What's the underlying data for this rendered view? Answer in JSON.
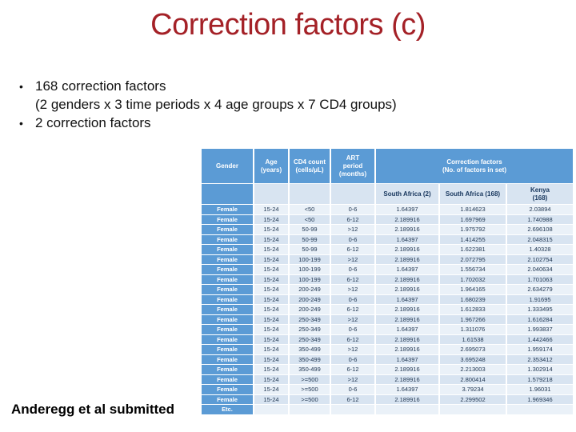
{
  "slide": {
    "title": "Correction factors (c)",
    "bullets": [
      {
        "marker": "•",
        "lines": [
          "168 correction factors",
          "(2 genders x 3 time periods x 4 age groups x 7 CD4 groups)"
        ]
      },
      {
        "marker": "•",
        "lines": [
          "2 correction factors"
        ]
      }
    ],
    "footnote": "Anderegg et al submitted"
  },
  "table": {
    "header": {
      "gender": "Gender",
      "age": "Age\n(years)",
      "cd4": "CD4 count\n(cells/μL)",
      "art": "ART\nperiod\n(months)",
      "correction": "Correction factors\n(No. of factors in set)"
    },
    "subheader": {
      "south_africa_2": "South Africa (2)",
      "south_africa_168": "South Africa (168)",
      "kenya_168": "Kenya\n(168)"
    },
    "rows": [
      [
        "Female",
        "15-24",
        "<50",
        "0-6",
        "1.64397",
        "1.814623",
        "2.03894"
      ],
      [
        "Female",
        "15-24",
        "<50",
        "6-12",
        "2.189916",
        "1.697969",
        "1.740988"
      ],
      [
        "Female",
        "15-24",
        "50-99",
        ">12",
        "2.189916",
        "1.975792",
        "2.696108"
      ],
      [
        "Female",
        "15-24",
        "50-99",
        "0-6",
        "1.64397",
        "1.414255",
        "2.048315"
      ],
      [
        "Female",
        "15-24",
        "50-99",
        "6-12",
        "2.189916",
        "1.622381",
        "1.40328"
      ],
      [
        "Female",
        "15-24",
        "100-199",
        ">12",
        "2.189916",
        "2.072795",
        "2.102754"
      ],
      [
        "Female",
        "15-24",
        "100-199",
        "0-6",
        "1.64397",
        "1.556734",
        "2.040634"
      ],
      [
        "Female",
        "15-24",
        "100-199",
        "6-12",
        "2.189916",
        "1.702032",
        "1.701063"
      ],
      [
        "Female",
        "15-24",
        "200-249",
        ">12",
        "2.189916",
        "1.964165",
        "2.634279"
      ],
      [
        "Female",
        "15-24",
        "200-249",
        "0-6",
        "1.64397",
        "1.680239",
        "1.91695"
      ],
      [
        "Female",
        "15-24",
        "200-249",
        "6-12",
        "2.189916",
        "1.612833",
        "1.333495"
      ],
      [
        "Female",
        "15-24",
        "250-349",
        ">12",
        "2.189916",
        "1.967266",
        "1.616284"
      ],
      [
        "Female",
        "15-24",
        "250-349",
        "0-6",
        "1.64397",
        "1.311076",
        "1.993837"
      ],
      [
        "Female",
        "15-24",
        "250-349",
        "6-12",
        "2.189916",
        "1.61538",
        "1.442466"
      ],
      [
        "Female",
        "15-24",
        "350-499",
        ">12",
        "2.189916",
        "2.695073",
        "1.959174"
      ],
      [
        "Female",
        "15-24",
        "350-499",
        "0-6",
        "1.64397",
        "3.695248",
        "2.353412"
      ],
      [
        "Female",
        "15-24",
        "350-499",
        "6-12",
        "2.189916",
        "2.213003",
        "1.302914"
      ],
      [
        "Female",
        "15-24",
        ">=500",
        ">12",
        "2.189916",
        "2.800414",
        "1.579218"
      ],
      [
        "Female",
        "15-24",
        ">=500",
        "0-6",
        "1.64397",
        "3.79234",
        "1.96031"
      ],
      [
        "Female",
        "15-24",
        ">=500",
        "6-12",
        "2.189916",
        "2.299502",
        "1.969346"
      ],
      [
        "Etc.",
        "",
        "",
        "",
        "",
        "",
        ""
      ]
    ]
  },
  "colors": {
    "title_red": "#A42127",
    "table_header_blue": "#5B9BD5",
    "row_light": "#EAF1F8",
    "row_dark": "#D8E4F1",
    "header_text": "#FFFFFF",
    "body_text": "#1F3550"
  }
}
